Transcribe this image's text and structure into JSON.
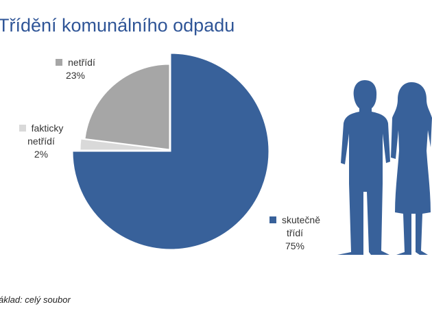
{
  "title": "Třídění komunálního odpadu",
  "footnote": "áklad: celý soubor",
  "chart_data": {
    "type": "pie",
    "categories": [
      "skutečně třídí",
      "fakticky netřídí",
      "netřídí"
    ],
    "values": [
      75,
      2,
      23
    ],
    "value_labels": [
      "75%",
      "2%",
      "23%"
    ],
    "colors": [
      "#38619a",
      "#d9d9d9",
      "#a6a6a6"
    ]
  }
}
